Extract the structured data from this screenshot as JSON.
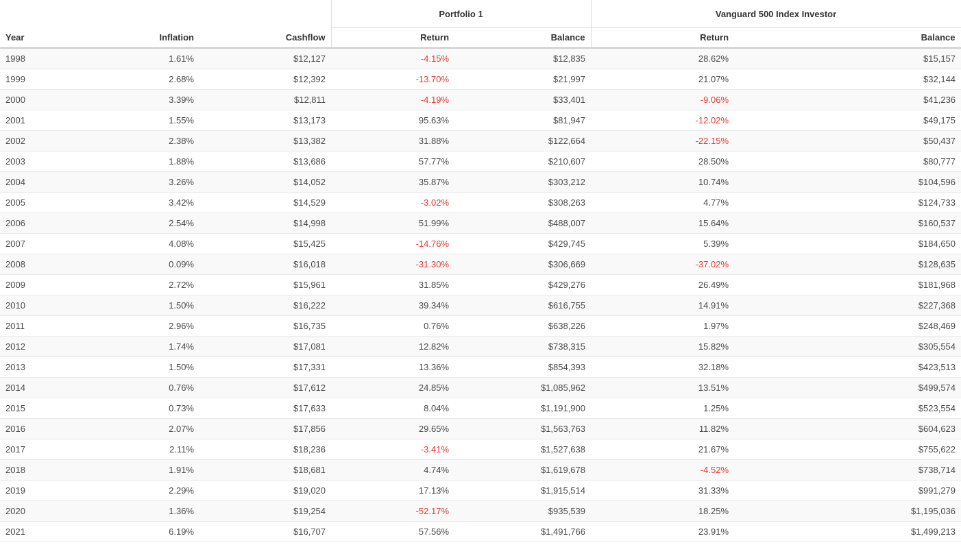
{
  "table": {
    "group_headers": [
      "Portfolio 1",
      "Vanguard 500 Index Investor"
    ],
    "column_headers": [
      "Year",
      "Inflation",
      "Cashflow",
      "Return",
      "Balance",
      "Return",
      "Balance"
    ],
    "colors": {
      "negative_value": "#e53935",
      "header_text": "#333333",
      "body_text": "#4a4a4a",
      "row_stripe": "#f9f9f9",
      "header_underline": "#cccccc",
      "row_border": "#e9e9e9",
      "group_separator": "#dddddd"
    },
    "rows": [
      [
        "1998",
        "1.61%",
        "$12,127",
        "-4.15%",
        "$12,835",
        "28.62%",
        "$15,157"
      ],
      [
        "1999",
        "2.68%",
        "$12,392",
        "-13.70%",
        "$21,997",
        "21.07%",
        "$32,144"
      ],
      [
        "2000",
        "3.39%",
        "$12,811",
        "-4.19%",
        "$33,401",
        "-9.06%",
        "$41,236"
      ],
      [
        "2001",
        "1.55%",
        "$13,173",
        "95.63%",
        "$81,947",
        "-12.02%",
        "$49,175"
      ],
      [
        "2002",
        "2.38%",
        "$13,382",
        "31.88%",
        "$122,664",
        "-22.15%",
        "$50,437"
      ],
      [
        "2003",
        "1.88%",
        "$13,686",
        "57.77%",
        "$210,607",
        "28.50%",
        "$80,777"
      ],
      [
        "2004",
        "3.26%",
        "$14,052",
        "35.87%",
        "$303,212",
        "10.74%",
        "$104,596"
      ],
      [
        "2005",
        "3.42%",
        "$14,529",
        "-3.02%",
        "$308,263",
        "4.77%",
        "$124,733"
      ],
      [
        "2006",
        "2.54%",
        "$14,998",
        "51.99%",
        "$488,007",
        "15.64%",
        "$160,537"
      ],
      [
        "2007",
        "4.08%",
        "$15,425",
        "-14.76%",
        "$429,745",
        "5.39%",
        "$184,650"
      ],
      [
        "2008",
        "0.09%",
        "$16,018",
        "-31.30%",
        "$306,669",
        "-37.02%",
        "$128,635"
      ],
      [
        "2009",
        "2.72%",
        "$15,961",
        "31.85%",
        "$429,276",
        "26.49%",
        "$181,968"
      ],
      [
        "2010",
        "1.50%",
        "$16,222",
        "39.34%",
        "$616,755",
        "14.91%",
        "$227,368"
      ],
      [
        "2011",
        "2.96%",
        "$16,735",
        "0.76%",
        "$638,226",
        "1.97%",
        "$248,469"
      ],
      [
        "2012",
        "1.74%",
        "$17,081",
        "12.82%",
        "$738,315",
        "15.82%",
        "$305,554"
      ],
      [
        "2013",
        "1.50%",
        "$17,331",
        "13.36%",
        "$854,393",
        "32.18%",
        "$423,513"
      ],
      [
        "2014",
        "0.76%",
        "$17,612",
        "24.85%",
        "$1,085,962",
        "13.51%",
        "$499,574"
      ],
      [
        "2015",
        "0.73%",
        "$17,633",
        "8.04%",
        "$1,191,900",
        "1.25%",
        "$523,554"
      ],
      [
        "2016",
        "2.07%",
        "$17,856",
        "29.65%",
        "$1,563,763",
        "11.82%",
        "$604,623"
      ],
      [
        "2017",
        "2.11%",
        "$18,236",
        "-3.41%",
        "$1,527,638",
        "21.67%",
        "$755,622"
      ],
      [
        "2018",
        "1.91%",
        "$18,681",
        "4.74%",
        "$1,619,678",
        "-4.52%",
        "$738,714"
      ],
      [
        "2019",
        "2.29%",
        "$19,020",
        "17.13%",
        "$1,915,514",
        "31.33%",
        "$991,279"
      ],
      [
        "2020",
        "1.36%",
        "$19,254",
        "-52.17%",
        "$935,539",
        "18.25%",
        "$1,195,036"
      ],
      [
        "2021",
        "6.19%",
        "$16,707",
        "57.56%",
        "$1,491,766",
        "23.91%",
        "$1,499,213"
      ]
    ]
  }
}
